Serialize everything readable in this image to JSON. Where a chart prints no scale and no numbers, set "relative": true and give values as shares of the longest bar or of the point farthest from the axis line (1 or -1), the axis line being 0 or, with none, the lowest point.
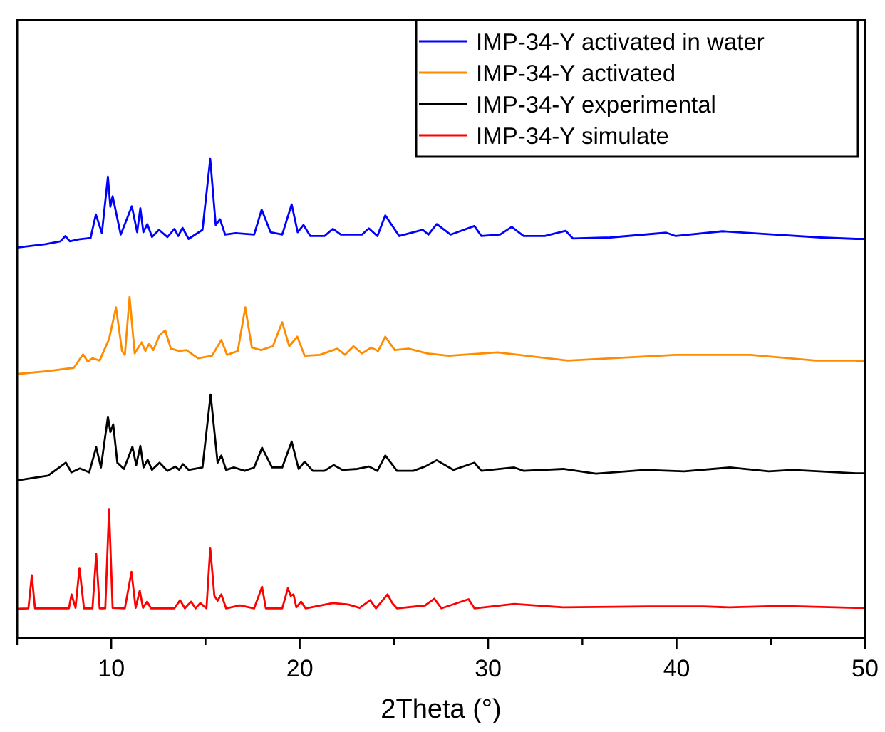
{
  "chart_data": {
    "type": "line",
    "xlabel": "2Theta (°)",
    "relative": true,
    "legend": "top right",
    "line_style": "solid",
    "grid": false,
    "xlim": [
      5,
      50
    ],
    "xticks": [
      {
        "value": 5,
        "label": null
      },
      10,
      {
        "value": 15,
        "label": null
      },
      20,
      {
        "value": 25,
        "label": null
      },
      30,
      {
        "value": 35,
        "label": null
      },
      40,
      {
        "value": 45,
        "label": null
      },
      50
    ],
    "series": [
      {
        "name": "IMP-34-Y activated in water",
        "color": "#0000ff",
        "x": [
          5,
          6.5,
          7.3,
          7.56,
          7.8,
          8.26,
          8.9,
          9.18,
          9.5,
          9.82,
          9.95,
          10.07,
          10.5,
          11.09,
          11.37,
          11.54,
          11.7,
          11.91,
          12.16,
          12.53,
          12.98,
          13.35,
          13.55,
          13.78,
          14.1,
          14.84,
          15.25,
          15.54,
          15.77,
          16.04,
          16.6,
          17.58,
          17.98,
          18.45,
          19.07,
          19.57,
          19.89,
          20.2,
          20.56,
          21.31,
          21.76,
          22.18,
          23.3,
          23.67,
          24.12,
          24.54,
          25.28,
          26.03,
          26.53,
          26.83,
          27.27,
          28.0,
          29.27,
          29.64,
          30.63,
          31.25,
          31.88,
          33.0,
          34.11,
          34.49,
          36.47,
          39.45,
          39.95,
          42.43,
          45.17,
          47.66,
          49.52,
          50
        ],
        "values": [
          0.815,
          0.822,
          0.828,
          0.839,
          0.828,
          0.832,
          0.835,
          0.884,
          0.845,
          0.963,
          0.9,
          0.922,
          0.842,
          0.901,
          0.847,
          0.897,
          0.847,
          0.864,
          0.837,
          0.852,
          0.837,
          0.854,
          0.839,
          0.856,
          0.833,
          0.852,
          1.0,
          0.862,
          0.874,
          0.842,
          0.845,
          0.842,
          0.894,
          0.847,
          0.842,
          0.905,
          0.847,
          0.862,
          0.839,
          0.839,
          0.854,
          0.842,
          0.842,
          0.855,
          0.839,
          0.882,
          0.839,
          0.847,
          0.852,
          0.842,
          0.864,
          0.842,
          0.86,
          0.839,
          0.842,
          0.858,
          0.839,
          0.839,
          0.85,
          0.834,
          0.836,
          0.846,
          0.839,
          0.849,
          0.842,
          0.836,
          0.833,
          0.833
        ]
      },
      {
        "name": "IMP-34-Y activated",
        "color": "#ff8c00",
        "x": [
          5,
          6.64,
          8.01,
          8.5,
          8.75,
          9.0,
          9.38,
          9.88,
          10.25,
          10.57,
          10.72,
          10.97,
          11.24,
          11.61,
          11.81,
          12.01,
          12.23,
          12.56,
          12.86,
          13.16,
          13.6,
          13.98,
          14.6,
          15.34,
          15.84,
          16.14,
          16.71,
          17.11,
          17.46,
          17.95,
          18.57,
          19.07,
          19.44,
          19.87,
          20.26,
          21.06,
          22.0,
          22.4,
          22.85,
          23.3,
          23.79,
          24.16,
          24.54,
          25.04,
          25.78,
          26.77,
          27.9,
          30.5,
          34.23,
          39.95,
          43.9,
          47.4,
          49.5,
          50
        ],
        "values": [
          0.551,
          0.557,
          0.564,
          0.592,
          0.577,
          0.584,
          0.579,
          0.624,
          0.69,
          0.599,
          0.591,
          0.712,
          0.594,
          0.617,
          0.599,
          0.614,
          0.601,
          0.632,
          0.642,
          0.604,
          0.599,
          0.601,
          0.584,
          0.589,
          0.622,
          0.591,
          0.599,
          0.69,
          0.606,
          0.601,
          0.609,
          0.659,
          0.609,
          0.629,
          0.589,
          0.591,
          0.604,
          0.591,
          0.609,
          0.594,
          0.606,
          0.599,
          0.629,
          0.601,
          0.604,
          0.594,
          0.589,
          0.596,
          0.579,
          0.591,
          0.591,
          0.579,
          0.579,
          0.577
        ]
      },
      {
        "name": "IMP-34-Y experimental",
        "color": "#000000",
        "x": [
          5,
          6.64,
          7.59,
          7.88,
          8.33,
          8.83,
          9.2,
          9.45,
          9.82,
          9.95,
          10.1,
          10.32,
          10.67,
          11.12,
          11.32,
          11.54,
          11.71,
          11.93,
          12.16,
          12.56,
          12.98,
          13.4,
          13.6,
          13.8,
          14.1,
          14.84,
          15.27,
          15.64,
          15.84,
          16.09,
          16.5,
          17.08,
          17.58,
          18.0,
          18.53,
          19.07,
          19.57,
          19.94,
          20.26,
          20.69,
          21.31,
          21.8,
          22.26,
          23.05,
          23.67,
          24.12,
          24.54,
          25.16,
          26.03,
          26.65,
          27.27,
          28.15,
          29.27,
          29.64,
          31.38,
          31.88,
          33.98,
          35.72,
          38.33,
          40.4,
          42.82,
          44.9,
          46.16,
          49.52,
          50
        ],
        "values": [
          0.329,
          0.339,
          0.366,
          0.346,
          0.354,
          0.346,
          0.398,
          0.356,
          0.462,
          0.43,
          0.446,
          0.366,
          0.353,
          0.399,
          0.361,
          0.401,
          0.356,
          0.372,
          0.351,
          0.366,
          0.349,
          0.358,
          0.351,
          0.363,
          0.351,
          0.356,
          0.508,
          0.366,
          0.381,
          0.351,
          0.356,
          0.349,
          0.356,
          0.397,
          0.356,
          0.356,
          0.41,
          0.353,
          0.368,
          0.349,
          0.349,
          0.361,
          0.351,
          0.353,
          0.358,
          0.349,
          0.381,
          0.349,
          0.349,
          0.358,
          0.371,
          0.351,
          0.366,
          0.349,
          0.356,
          0.349,
          0.353,
          0.343,
          0.351,
          0.348,
          0.356,
          0.348,
          0.351,
          0.344,
          0.344
        ]
      },
      {
        "name": "IMP-34-Y simulate",
        "color": "#ff0000",
        "x": [
          5,
          5.6,
          5.78,
          5.95,
          7.75,
          7.89,
          8.1,
          8.31,
          8.55,
          9.0,
          9.2,
          9.38,
          9.68,
          9.88,
          10.07,
          10.72,
          11.07,
          11.29,
          11.51,
          11.68,
          11.9,
          12.1,
          13.35,
          13.65,
          13.9,
          14.23,
          14.47,
          14.72,
          15.05,
          15.25,
          15.47,
          15.64,
          15.84,
          16.09,
          16.83,
          17.58,
          18.0,
          18.2,
          19.07,
          19.37,
          19.52,
          19.67,
          19.82,
          20.07,
          20.31,
          21.76,
          22.56,
          23.18,
          23.74,
          24.04,
          24.66,
          24.91,
          25.16,
          26.65,
          27.14,
          27.52,
          28.96,
          29.27,
          31.38,
          33.98,
          38.46,
          41.44,
          42.8,
          45.54,
          49.5,
          50
        ],
        "values": [
          0.061,
          0.062,
          0.131,
          0.062,
          0.062,
          0.091,
          0.063,
          0.146,
          0.062,
          0.062,
          0.175,
          0.062,
          0.062,
          0.268,
          0.063,
          0.062,
          0.138,
          0.063,
          0.099,
          0.063,
          0.076,
          0.062,
          0.062,
          0.079,
          0.062,
          0.076,
          0.062,
          0.073,
          0.062,
          0.188,
          0.088,
          0.078,
          0.091,
          0.062,
          0.068,
          0.062,
          0.107,
          0.062,
          0.062,
          0.104,
          0.088,
          0.091,
          0.064,
          0.076,
          0.062,
          0.073,
          0.07,
          0.063,
          0.079,
          0.062,
          0.091,
          0.073,
          0.062,
          0.068,
          0.082,
          0.062,
          0.081,
          0.062,
          0.071,
          0.064,
          0.066,
          0.066,
          0.064,
          0.067,
          0.063,
          0.063
        ]
      }
    ]
  }
}
